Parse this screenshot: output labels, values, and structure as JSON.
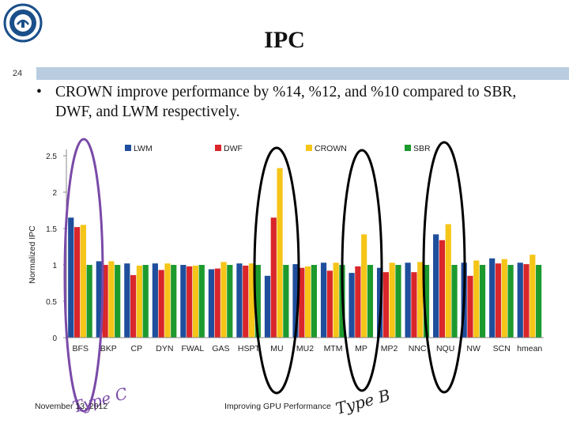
{
  "slide": {
    "title": "IPC",
    "page_number": "24",
    "bullet": "CROWN improve performance by %14, %12, and %10 compared to SBR, DWF, and LWM respectively.",
    "footer_date": "November 13, 2012",
    "footer_title": "Improving GPU Performance"
  },
  "annotations": {
    "type_c": "Type C",
    "type_b": "Type B",
    "highlight_color_c": "#7a4aa8",
    "highlight_color_b": "#000000"
  },
  "chart_data": {
    "type": "bar",
    "title": "",
    "xlabel": "",
    "ylabel": "Normalized IPC",
    "ylim": [
      0,
      2.5
    ],
    "yticks": [
      0,
      0.5,
      1,
      1.5,
      2,
      2.5
    ],
    "ytick_labels": [
      "0",
      "0.5",
      "1",
      "1.5",
      "2",
      "2.5"
    ],
    "legend_position": "top",
    "categories": [
      "BFS",
      "BKP",
      "CP",
      "DYN",
      "FWAL",
      "GAS",
      "HSPT",
      "MU",
      "MU2",
      "MTM",
      "MP",
      "MP2",
      "NNC",
      "NQU",
      "NW",
      "SCN",
      "hmean"
    ],
    "series": [
      {
        "name": "LWM",
        "color": "#1f4e9c",
        "values": [
          1.65,
          1.05,
          1.02,
          1.02,
          1.0,
          0.94,
          1.02,
          0.85,
          1.01,
          1.03,
          0.89,
          0.96,
          1.03,
          1.42,
          1.03,
          1.09,
          1.03
        ]
      },
      {
        "name": "DWF",
        "color": "#d9262a",
        "values": [
          1.52,
          1.0,
          0.86,
          0.93,
          0.98,
          0.95,
          0.99,
          1.65,
          0.96,
          0.92,
          0.98,
          0.9,
          0.9,
          1.34,
          0.85,
          1.02,
          1.01
        ]
      },
      {
        "name": "CROWN",
        "color": "#f5c518",
        "values": [
          1.55,
          1.05,
          0.99,
          1.02,
          0.99,
          1.04,
          1.02,
          2.33,
          0.98,
          1.03,
          1.42,
          1.03,
          1.04,
          1.56,
          1.06,
          1.08,
          1.14
        ]
      },
      {
        "name": "SBR",
        "color": "#1d9a2e",
        "values": [
          1.0,
          1.0,
          1.0,
          1.0,
          1.0,
          1.0,
          1.0,
          1.0,
          1.0,
          1.0,
          1.0,
          1.0,
          1.0,
          1.0,
          1.0,
          1.0,
          1.0
        ]
      }
    ]
  }
}
